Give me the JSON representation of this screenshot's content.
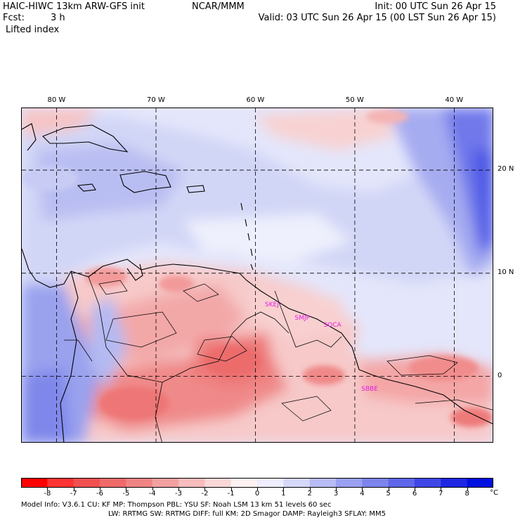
{
  "header": {
    "model_line": "HAIC-HIWC 13km ARW-GFS init",
    "org": "NCAR/MMM",
    "fcst_label": "Fcst:",
    "fcst_value": "3 h",
    "init": "Init: 00 UTC Sun 26 Apr 15",
    "valid": "Valid: 03 UTC Sun 26 Apr 15 (00 LST Sun 26 Apr 15)",
    "field": "Lifted index"
  },
  "map": {
    "lon_labels": [
      "80 W",
      "70 W",
      "60 W",
      "50 W",
      "40 W"
    ],
    "lat_labels": [
      "20 N",
      "10 N",
      "0"
    ],
    "lon_values": [
      -80,
      -70,
      -60,
      -50,
      -40
    ],
    "lat_values": [
      20,
      10,
      0
    ],
    "lon_range": [
      -83.5,
      -36
    ],
    "lat_range": [
      -6.5,
      26
    ],
    "stations": [
      {
        "label": "SKEJ",
        "lon": -58.2,
        "lat": 6.8
      },
      {
        "label": "SMJP",
        "lon": -55.2,
        "lat": 5.5
      },
      {
        "label": "SOCA",
        "lon": -52.3,
        "lat": 4.8
      },
      {
        "label": "SBBE",
        "lon": -48.5,
        "lat": -1.4
      }
    ],
    "colors": {
      "station": "#e020e0",
      "coast": "#000000"
    }
  },
  "colorbar": {
    "labels": [
      "-8",
      "-7",
      "-6",
      "-5",
      "-4",
      "-3",
      "-2",
      "-1",
      "0",
      "1",
      "2",
      "3",
      "4",
      "5",
      "6",
      "7",
      "8"
    ],
    "unit": "°C",
    "colors": [
      "#ff0000",
      "#ff3333",
      "#f25050",
      "#f06a6a",
      "#f08484",
      "#f4a0a0",
      "#f8bcbc",
      "#fbd8d8",
      "#fff2f2",
      "#eeeeff",
      "#d6d8fb",
      "#b8bcf6",
      "#9aa0f2",
      "#7c84ee",
      "#5e66ea",
      "#3e46e6",
      "#1e26e2",
      "#0010e0"
    ]
  },
  "footer": {
    "line1": "Model Info: V3.6.1     CU: KF      MP: Thompson     PBL: YSU       SF: Noah LSM     13 km    51 levels   60 sec",
    "line2": "LW: RRTMG    SW: RRTMG   DIFF: full    KM: 2D Smagor DAMP: Rayleigh3   SFLAY: MM5"
  }
}
